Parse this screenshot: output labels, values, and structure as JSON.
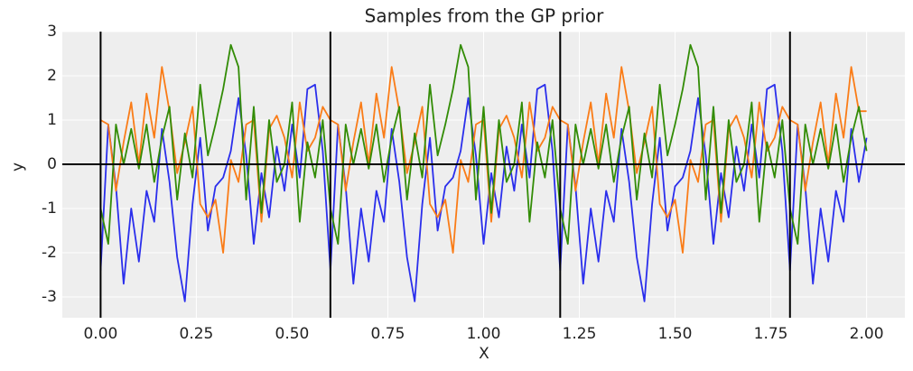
{
  "chart_data": {
    "type": "line",
    "title": "Samples from the GP prior",
    "x_label": "X",
    "y_label": "y",
    "x": [
      0,
      0.02,
      0.04,
      0.06,
      0.08,
      0.1,
      0.12,
      0.14,
      0.16,
      0.18,
      0.2,
      0.22,
      0.24,
      0.26,
      0.28,
      0.3,
      0.32,
      0.34,
      0.36,
      0.38,
      0.4,
      0.42,
      0.44,
      0.46,
      0.48,
      0.5,
      0.52,
      0.54,
      0.56,
      0.58,
      0.6,
      0.62,
      0.64,
      0.66,
      0.68,
      0.7,
      0.72,
      0.74,
      0.76,
      0.78,
      0.8,
      0.82,
      0.84,
      0.86,
      0.88,
      0.9,
      0.92,
      0.94,
      0.96,
      0.98,
      1,
      1.02,
      1.04,
      1.06,
      1.08,
      1.1,
      1.12,
      1.14,
      1.16,
      1.18,
      1.2,
      1.22,
      1.24,
      1.26,
      1.28,
      1.3,
      1.32,
      1.34,
      1.36,
      1.38,
      1.4,
      1.42,
      1.44,
      1.46,
      1.48,
      1.5,
      1.52,
      1.54,
      1.56,
      1.58,
      1.6,
      1.62,
      1.64,
      1.66,
      1.68,
      1.7,
      1.72,
      1.74,
      1.76,
      1.78,
      1.8,
      1.82,
      1.84,
      1.86,
      1.88,
      1.9,
      1.92,
      1.94,
      1.96,
      1.98,
      2
    ],
    "series": [
      {
        "color": "#2a2eec",
        "values": [
          -2.4,
          0.9,
          -0.5,
          -2.7,
          -1.0,
          -2.2,
          -0.6,
          -1.3,
          0.8,
          -0.4,
          -2.1,
          -3.1,
          -0.9,
          0.6,
          -1.5,
          -0.5,
          -0.3,
          0.3,
          1.5,
          0.2,
          -1.8,
          -0.2,
          -1.2,
          0.4,
          -0.6,
          0.9,
          -0.3,
          1.7,
          1.8,
          0.3,
          -2.4,
          0.9,
          -0.5,
          -2.7,
          -1.0,
          -2.2,
          -0.6,
          -1.3,
          0.8,
          -0.4,
          -2.1,
          -3.1,
          -0.9,
          0.6,
          -1.5,
          -0.5,
          -0.3,
          0.3,
          1.5,
          0.2,
          -1.8,
          -0.2,
          -1.2,
          0.4,
          -0.6,
          0.9,
          -0.3,
          1.7,
          1.8,
          0.3,
          -2.4,
          0.9,
          -0.5,
          -2.7,
          -1.0,
          -2.2,
          -0.6,
          -1.3,
          0.8,
          -0.4,
          -2.1,
          -3.1,
          -0.9,
          0.6,
          -1.5,
          -0.5,
          -0.3,
          0.3,
          1.5,
          0.2,
          -1.8,
          -0.2,
          -1.2,
          0.4,
          -0.6,
          0.9,
          -0.3,
          1.7,
          1.8,
          0.3,
          -2.4,
          0.9,
          -0.5,
          -2.7,
          -1.0,
          -2.2,
          -0.6,
          -1.3,
          0.8,
          -0.4,
          0.6
        ]
      },
      {
        "color": "#fa7c17",
        "values": [
          1.0,
          0.9,
          -0.6,
          0.5,
          1.4,
          0.0,
          1.6,
          0.6,
          2.2,
          1.2,
          -0.2,
          0.5,
          1.3,
          -0.9,
          -1.2,
          -0.8,
          -2.0,
          0.1,
          -0.4,
          0.9,
          1.0,
          -1.3,
          0.8,
          1.1,
          0.6,
          -0.3,
          1.4,
          0.3,
          0.6,
          1.3,
          1.0,
          0.9,
          -0.6,
          0.5,
          1.4,
          0.0,
          1.6,
          0.6,
          2.2,
          1.2,
          -0.2,
          0.5,
          1.3,
          -0.9,
          -1.2,
          -0.8,
          -2.0,
          0.1,
          -0.4,
          0.9,
          1.0,
          -1.3,
          0.8,
          1.1,
          0.6,
          -0.3,
          1.4,
          0.3,
          0.6,
          1.3,
          1.0,
          0.9,
          -0.6,
          0.5,
          1.4,
          0.0,
          1.6,
          0.6,
          2.2,
          1.2,
          -0.2,
          0.5,
          1.3,
          -0.9,
          -1.2,
          -0.8,
          -2.0,
          0.1,
          -0.4,
          0.9,
          1.0,
          -1.3,
          0.8,
          1.1,
          0.6,
          -0.3,
          1.4,
          0.3,
          0.6,
          1.3,
          1.0,
          0.9,
          -0.6,
          0.5,
          1.4,
          0.0,
          1.6,
          0.6,
          2.2,
          1.2,
          1.2
        ]
      },
      {
        "color": "#328c06",
        "values": [
          -1.0,
          -1.8,
          0.9,
          0.0,
          0.8,
          -0.1,
          0.9,
          -0.4,
          0.6,
          1.3,
          -0.8,
          0.7,
          -0.3,
          1.8,
          0.2,
          0.9,
          1.7,
          2.7,
          2.2,
          -0.8,
          1.3,
          -1.1,
          1.0,
          -0.4,
          0.0,
          1.4,
          -1.3,
          0.5,
          -0.3,
          1.0,
          -1.0,
          -1.8,
          0.9,
          0.0,
          0.8,
          -0.1,
          0.9,
          -0.4,
          0.6,
          1.3,
          -0.8,
          0.7,
          -0.3,
          1.8,
          0.2,
          0.9,
          1.7,
          2.7,
          2.2,
          -0.8,
          1.3,
          -1.1,
          1.0,
          -0.4,
          0.0,
          1.4,
          -1.3,
          0.5,
          -0.3,
          1.0,
          -1.0,
          -1.8,
          0.9,
          0.0,
          0.8,
          -0.1,
          0.9,
          -0.4,
          0.6,
          1.3,
          -0.8,
          0.7,
          -0.3,
          1.8,
          0.2,
          0.9,
          1.7,
          2.7,
          2.2,
          -0.8,
          1.3,
          -1.1,
          1.0,
          -0.4,
          0.0,
          1.4,
          -1.3,
          0.5,
          -0.3,
          1.0,
          -1.0,
          -1.8,
          0.9,
          0.0,
          0.8,
          -0.1,
          0.9,
          -0.4,
          0.6,
          1.3,
          0.3
        ]
      }
    ],
    "xlim": [
      -0.1,
      2.1
    ],
    "ylim": [
      -3.47,
      3.0
    ],
    "xticks": [
      {
        "value": 0,
        "label": "0.00"
      },
      {
        "value": 0.25,
        "label": "0.25"
      },
      {
        "value": 0.5,
        "label": "0.50"
      },
      {
        "value": 0.75,
        "label": "0.75"
      },
      {
        "value": 1,
        "label": "1.00"
      },
      {
        "value": 1.25,
        "label": "1.25"
      },
      {
        "value": 1.5,
        "label": "1.50"
      },
      {
        "value": 1.75,
        "label": "1.75"
      },
      {
        "value": 2,
        "label": "2.00"
      }
    ],
    "yticks": [
      -3,
      -2,
      -1,
      0,
      1,
      2,
      3
    ],
    "vlines": [
      0,
      0.6,
      1.2,
      1.8
    ],
    "hlines": [
      0
    ],
    "grid": true
  }
}
